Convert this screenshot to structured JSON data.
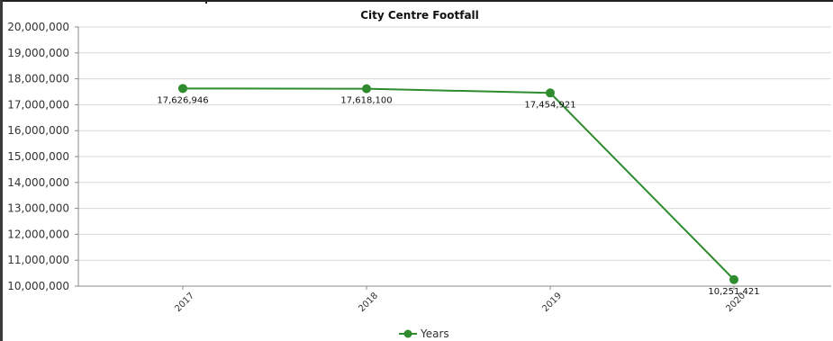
{
  "chart_data": {
    "type": "line",
    "title": "City Centre Footfall",
    "categories": [
      "2017",
      "2018",
      "2019",
      "2020"
    ],
    "series": [
      {
        "name": "Years",
        "values": [
          17626946,
          17618100,
          17454921,
          10251421
        ]
      }
    ],
    "data_labels": [
      "17,626,946",
      "17,618,100",
      "17,454,921",
      "10,251,421"
    ],
    "y_ticks": [
      "10,000,000",
      "11,000,000",
      "12,000,000",
      "13,000,000",
      "14,000,000",
      "15,000,000",
      "16,000,000",
      "17,000,000",
      "18,000,000",
      "19,000,000",
      "20,000,000"
    ],
    "ylim": [
      10000000,
      20000000
    ],
    "grid": true,
    "legend_position": "bottom",
    "series_color": "#2e8b2e",
    "grid_color": "#d9d9d9"
  }
}
